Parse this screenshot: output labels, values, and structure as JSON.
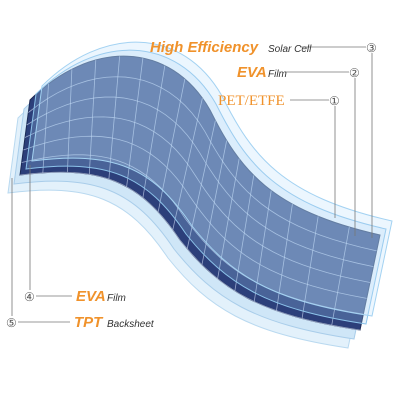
{
  "labels": [
    {
      "number": "③",
      "main": "High Efficiency",
      "sub": "Solar Cell"
    },
    {
      "number": "②",
      "main": "EVA",
      "sub": "Film"
    },
    {
      "number": "①",
      "main": "PET/ETFE"
    },
    {
      "number": "④",
      "main": "EVA",
      "sub": "Film"
    },
    {
      "number": "⑤",
      "main": "TPT",
      "sub": "Backsheet"
    }
  ]
}
